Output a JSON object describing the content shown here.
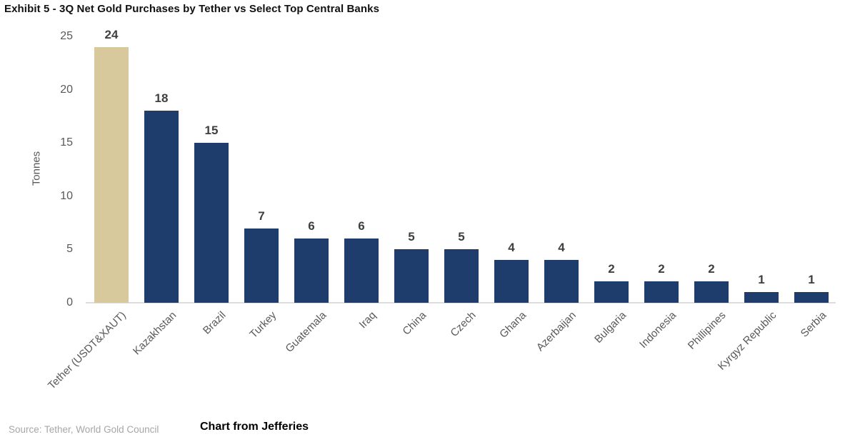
{
  "title": "Exhibit 5 - 3Q Net Gold Purchases by Tether vs Select Top Central Banks",
  "footer": {
    "source": "Source: Tether, World Gold Council",
    "credit": "Chart from Jefferies"
  },
  "colors": {
    "highlight_bar": "#d7c99c",
    "default_bar": "#1e3d6d",
    "value_label": "#3f3f3f",
    "axis_text": "#595959",
    "axis_line": "#dcdcdc",
    "source_text": "#a6a6a6"
  },
  "chart_data": {
    "type": "bar",
    "title": "Exhibit 5 - 3Q Net Gold Purchases by Tether vs Select Top Central Banks",
    "xlabel": "",
    "ylabel": "Tonnes",
    "ylim": [
      0,
      25
    ],
    "yticks": [
      0,
      5,
      10,
      15,
      20,
      25
    ],
    "grid": false,
    "legend": false,
    "data_labels": true,
    "highlight_index": 0,
    "categories": [
      "Tether (USDT&XAUT)",
      "Kazakhstan",
      "Brazil",
      "Turkey",
      "Guatemala",
      "Iraq",
      "China",
      "Czech",
      "Ghana",
      "Azerbaijan",
      "Bulgaria",
      "Indonesia",
      "Phillipines",
      "Kyrgyz Republic",
      "Serbia"
    ],
    "values": [
      24,
      18,
      15,
      7,
      6,
      6,
      5,
      5,
      4,
      4,
      2,
      2,
      2,
      1,
      1
    ]
  }
}
